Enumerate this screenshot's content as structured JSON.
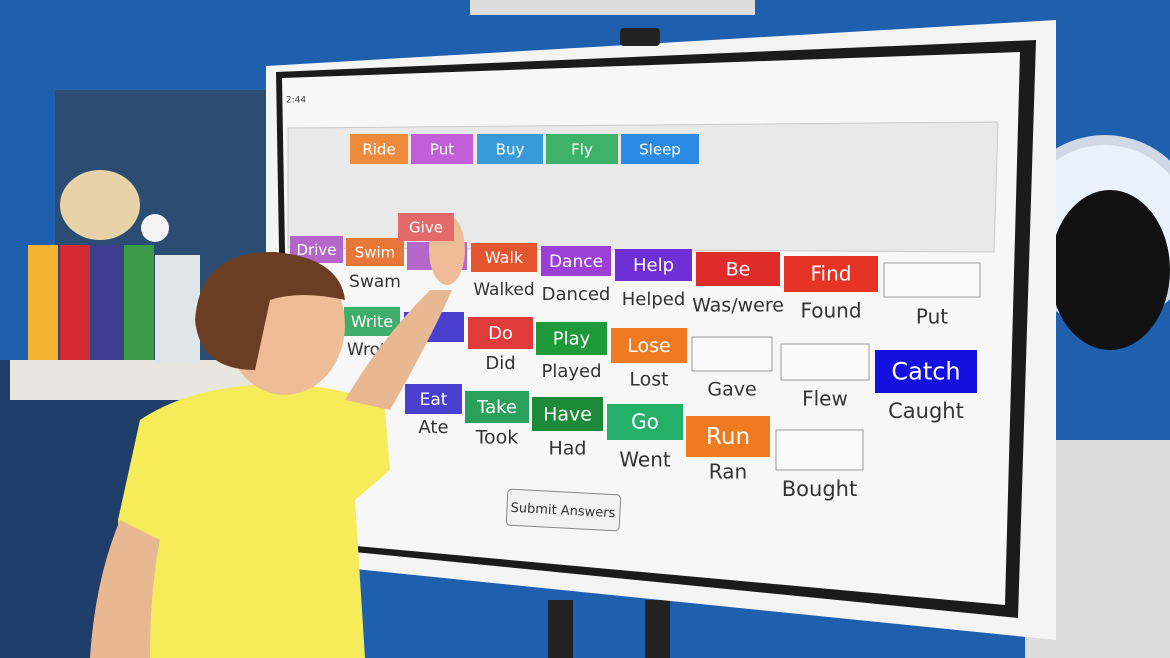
{
  "screen": {
    "timer": "2:44",
    "word_bank": [
      {
        "label": "Ride",
        "color": "#ee8a3c"
      },
      {
        "label": "Put",
        "color": "#c25fd8"
      },
      {
        "label": "Buy",
        "color": "#3a9ad8"
      },
      {
        "label": "Fly",
        "color": "#3fb26a"
      },
      {
        "label": "Sleep",
        "color": "#2a8ae4"
      }
    ],
    "dragging": {
      "label": "Give",
      "color": "#e46a6a"
    },
    "rows": [
      [
        {
          "verb": "Drive",
          "color": "#b466c9"
        },
        {
          "verb": "Swim",
          "color": "#e8773a",
          "past": "Swam"
        },
        {
          "verb": "Walk",
          "color": "#e4572e",
          "past": "Walked"
        },
        {
          "verb": "Dance",
          "color": "#9b3fd6",
          "past": "Danced"
        },
        {
          "verb": "Help",
          "color": "#6f2fd6",
          "past": "Helped"
        },
        {
          "verb": "Be",
          "color": "#e02b2b",
          "past": "Was/were"
        },
        {
          "verb": "Find",
          "color": "#e53425",
          "past": "Found"
        },
        {
          "past": "Put"
        }
      ],
      [
        {
          "verb": "Write",
          "color": "#3fae6a",
          "past": "Wrote"
        },
        {
          "verb": "Do",
          "color": "#e03a3a",
          "past": "Did"
        },
        {
          "verb": "Play",
          "color": "#1f9a3a",
          "past": "Played"
        },
        {
          "verb": "Lose",
          "color": "#ef7a1f",
          "past": "Lost"
        },
        {
          "past": "Gave"
        },
        {
          "past": "Flew"
        },
        {
          "verb": "Catch",
          "color": "#1410e0",
          "past": "Caught"
        }
      ],
      [
        {
          "verb": "Eat",
          "color": "#4b3fd0",
          "past": "Ate"
        },
        {
          "verb": "Take",
          "color": "#2aa05a",
          "past": "Took"
        },
        {
          "verb": "Have",
          "color": "#1d8a3a",
          "past": "Had"
        },
        {
          "verb": "Go",
          "color": "#25b06a",
          "past": "Went"
        },
        {
          "verb": "Run",
          "color": "#ef7a1f",
          "past": "Ran"
        },
        {
          "past": "Bought"
        }
      ]
    ],
    "submit": "Submit Answers"
  }
}
